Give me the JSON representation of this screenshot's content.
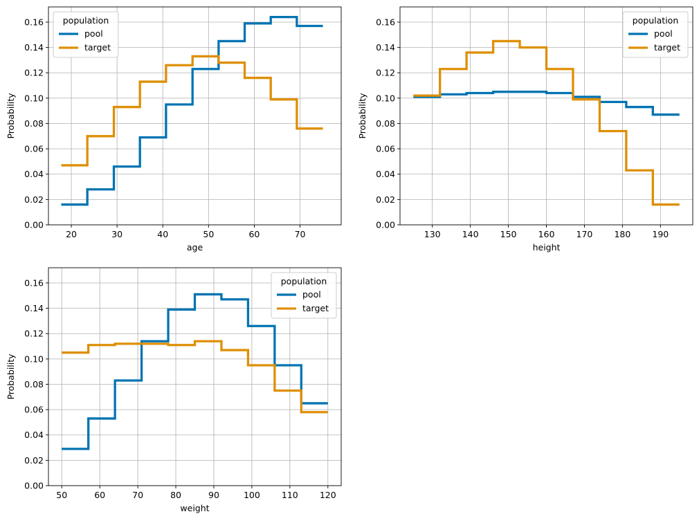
{
  "figure": {
    "background": "#ffffff"
  },
  "chart_data": [
    {
      "type": "line",
      "step": "post",
      "xlabel": "age",
      "ylabel": "Probability",
      "xlim": [
        15,
        79
      ],
      "ylim": [
        0,
        0.172
      ],
      "xticks": [
        20,
        30,
        40,
        50,
        60,
        70
      ],
      "yticks": [
        0,
        0.02,
        0.04,
        0.06,
        0.08,
        0.1,
        0.12,
        0.14,
        0.16
      ],
      "grid": true,
      "legend": {
        "title": "population",
        "placement": "top-left"
      },
      "series": [
        {
          "name": "pool",
          "color": "#0173b2",
          "x": [
            17.8,
            23.5,
            29.3,
            35.0,
            40.7,
            46.5,
            52.2,
            57.9,
            63.6,
            69.3,
            75.0
          ],
          "y": [
            0.016,
            0.028,
            0.046,
            0.069,
            0.095,
            0.123,
            0.145,
            0.159,
            0.164,
            0.157,
            0.157
          ]
        },
        {
          "name": "target",
          "color": "#de8f05",
          "x": [
            17.8,
            23.5,
            29.3,
            35.0,
            40.7,
            46.5,
            52.2,
            57.9,
            63.6,
            69.3,
            75.0
          ],
          "y": [
            0.047,
            0.07,
            0.093,
            0.113,
            0.126,
            0.133,
            0.128,
            0.116,
            0.099,
            0.076,
            0.076
          ]
        }
      ]
    },
    {
      "type": "line",
      "step": "post",
      "xlabel": "height",
      "ylabel": "Probability",
      "xlim": [
        121.5,
        198.5
      ],
      "ylim": [
        0,
        0.172
      ],
      "xticks": [
        130,
        140,
        150,
        160,
        170,
        180,
        190
      ],
      "yticks": [
        0,
        0.02,
        0.04,
        0.06,
        0.08,
        0.1,
        0.12,
        0.14,
        0.16
      ],
      "grid": true,
      "legend": {
        "title": "population",
        "placement": "top-right"
      },
      "series": [
        {
          "name": "pool",
          "color": "#0173b2",
          "x": [
            125,
            132,
            139,
            146,
            153,
            160,
            167,
            174,
            181,
            188,
            195
          ],
          "y": [
            0.101,
            0.103,
            0.104,
            0.105,
            0.105,
            0.104,
            0.101,
            0.097,
            0.093,
            0.087,
            0.087
          ]
        },
        {
          "name": "target",
          "color": "#de8f05",
          "x": [
            125,
            132,
            139,
            146,
            153,
            160,
            167,
            174,
            181,
            188,
            195
          ],
          "y": [
            0.102,
            0.123,
            0.136,
            0.145,
            0.14,
            0.123,
            0.099,
            0.074,
            0.043,
            0.016,
            0.016
          ]
        }
      ]
    },
    {
      "type": "line",
      "step": "post",
      "xlabel": "weight",
      "ylabel": "Probability",
      "xlim": [
        46.5,
        123.5
      ],
      "ylim": [
        0,
        0.172
      ],
      "xticks": [
        50,
        60,
        70,
        80,
        90,
        100,
        110,
        120
      ],
      "yticks": [
        0,
        0.02,
        0.04,
        0.06,
        0.08,
        0.1,
        0.12,
        0.14,
        0.16
      ],
      "grid": true,
      "legend": {
        "title": "population",
        "placement": "top-right"
      },
      "series": [
        {
          "name": "pool",
          "color": "#0173b2",
          "x": [
            50,
            57,
            64,
            71,
            78,
            85,
            92,
            99,
            106,
            113,
            120
          ],
          "y": [
            0.029,
            0.053,
            0.083,
            0.114,
            0.139,
            0.151,
            0.147,
            0.126,
            0.095,
            0.065,
            0.065
          ]
        },
        {
          "name": "target",
          "color": "#de8f05",
          "x": [
            50,
            57,
            64,
            71,
            78,
            85,
            92,
            99,
            106,
            113,
            120
          ],
          "y": [
            0.105,
            0.111,
            0.112,
            0.112,
            0.111,
            0.114,
            0.107,
            0.095,
            0.075,
            0.058,
            0.058
          ]
        }
      ]
    }
  ]
}
